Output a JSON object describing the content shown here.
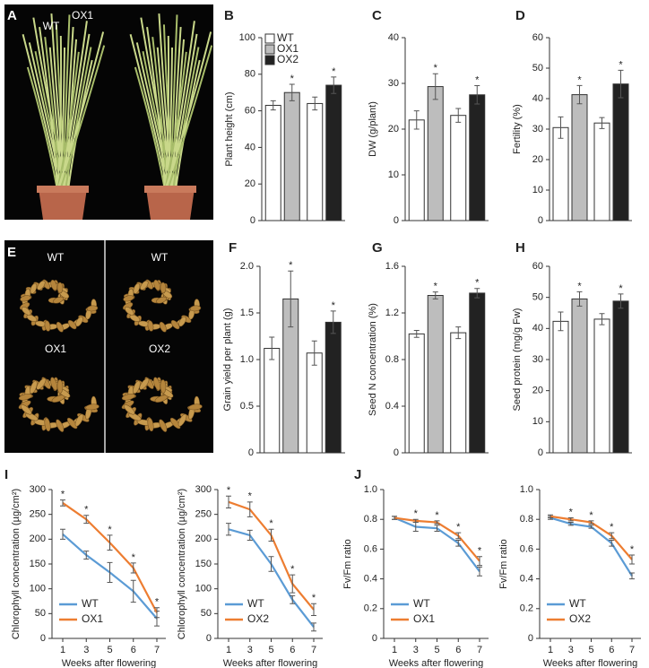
{
  "photos": [
    {
      "letter": "A",
      "labels": [
        "WT",
        "OX1"
      ]
    },
    {
      "letter": "E",
      "labels": [
        "WT",
        "WT",
        "OX1",
        "OX2"
      ]
    }
  ],
  "chart_data": [
    {
      "type": "bar",
      "panel": "B",
      "y_label": "Plant height (cm)",
      "categories": [
        null,
        null
      ],
      "ylim": [
        0,
        100
      ],
      "yticks": [
        0,
        20,
        40,
        60,
        80,
        100
      ],
      "legend": "upper left",
      "series": [
        {
          "name": "WT",
          "color": "#ffffff",
          "values": [
            63,
            64
          ],
          "errors": [
            2.5,
            3.5
          ]
        },
        {
          "name": "OX1",
          "color": "#bdbdbd",
          "values": [
            70,
            null
          ],
          "errors": [
            4.5,
            null
          ],
          "annotations": [
            "*",
            null
          ]
        },
        {
          "name": "OX2",
          "color": "#222222",
          "values": [
            null,
            74
          ],
          "errors": [
            null,
            4.5
          ],
          "annotations": [
            null,
            "*"
          ]
        }
      ]
    },
    {
      "type": "bar",
      "panel": "C",
      "y_label": "DW (g/plant)",
      "categories": [
        null,
        null
      ],
      "ylim": [
        0,
        40
      ],
      "yticks": [
        0,
        10,
        20,
        30,
        40
      ],
      "series": [
        {
          "name": "WT",
          "color": "#ffffff",
          "values": [
            22,
            23
          ],
          "errors": [
            2,
            1.5
          ]
        },
        {
          "name": "OX1",
          "color": "#bdbdbd",
          "values": [
            29.3,
            null
          ],
          "errors": [
            2.8,
            null
          ],
          "annotations": [
            "*",
            null
          ]
        },
        {
          "name": "OX2",
          "color": "#222222",
          "values": [
            null,
            27.5
          ],
          "errors": [
            null,
            2
          ],
          "annotations": [
            null,
            "*"
          ]
        }
      ]
    },
    {
      "type": "bar",
      "panel": "D",
      "y_label": "Fertility (%)",
      "categories": [
        null,
        null
      ],
      "ylim": [
        0,
        60
      ],
      "yticks": [
        0,
        10,
        20,
        30,
        40,
        50,
        60
      ],
      "series": [
        {
          "name": "WT",
          "color": "#ffffff",
          "values": [
            30.5,
            32
          ],
          "errors": [
            3.5,
            1.8
          ]
        },
        {
          "name": "OX1",
          "color": "#bdbdbd",
          "values": [
            41.3,
            null
          ],
          "errors": [
            3,
            null
          ],
          "annotations": [
            "*",
            null
          ]
        },
        {
          "name": "OX2",
          "color": "#222222",
          "values": [
            null,
            44.8
          ],
          "errors": [
            null,
            4.5
          ],
          "annotations": [
            null,
            "*"
          ]
        }
      ]
    },
    {
      "type": "bar",
      "panel": "F",
      "y_label": "Grain yield per plant (g)",
      "categories": [
        null,
        null
      ],
      "ylim": [
        0,
        2
      ],
      "yticks": [
        0,
        0.5,
        {
          "value": 1,
          "label": "1.0"
        },
        1.5,
        {
          "value": 2,
          "label": "2.0"
        }
      ],
      "series": [
        {
          "name": "WT",
          "color": "#ffffff",
          "values": [
            1.12,
            1.07
          ],
          "errors": [
            0.12,
            0.13
          ]
        },
        {
          "name": "OX1",
          "color": "#bdbdbd",
          "values": [
            1.65,
            null
          ],
          "errors": [
            0.3,
            null
          ],
          "annotations": [
            "*",
            null
          ]
        },
        {
          "name": "OX2",
          "color": "#222222",
          "values": [
            null,
            1.4
          ],
          "errors": [
            null,
            0.12
          ],
          "annotations": [
            null,
            "*"
          ]
        }
      ]
    },
    {
      "type": "bar",
      "panel": "G",
      "y_label": "Seed N concentration (%)",
      "categories": [
        null,
        null
      ],
      "ylim": [
        0,
        1.6
      ],
      "yticks": [
        0,
        0.4,
        0.8,
        1.2,
        1.6
      ],
      "series": [
        {
          "name": "WT",
          "color": "#ffffff",
          "values": [
            1.02,
            1.03
          ],
          "errors": [
            0.03,
            0.05
          ]
        },
        {
          "name": "OX1",
          "color": "#bdbdbd",
          "values": [
            1.35,
            null
          ],
          "errors": [
            0.03,
            null
          ],
          "annotations": [
            "*",
            null
          ]
        },
        {
          "name": "OX2",
          "color": "#222222",
          "values": [
            null,
            1.37
          ],
          "errors": [
            null,
            0.04
          ],
          "annotations": [
            null,
            "*"
          ]
        }
      ]
    },
    {
      "type": "bar",
      "panel": "H",
      "y_label": "Seed protein (mg/g Fw)",
      "categories": [
        null,
        null
      ],
      "ylim": [
        0,
        60
      ],
      "yticks": [
        0,
        10,
        20,
        30,
        40,
        50,
        60
      ],
      "series": [
        {
          "name": "WT",
          "color": "#ffffff",
          "values": [
            42.3,
            43
          ],
          "errors": [
            3,
            1.8
          ]
        },
        {
          "name": "OX1",
          "color": "#bdbdbd",
          "values": [
            49.5,
            null
          ],
          "errors": [
            2.3,
            null
          ],
          "annotations": [
            "*",
            null
          ]
        },
        {
          "name": "OX2",
          "color": "#222222",
          "values": [
            null,
            48.8
          ],
          "errors": [
            null,
            2.3
          ],
          "annotations": [
            null,
            "*"
          ]
        }
      ]
    },
    {
      "type": "line",
      "panel": "I",
      "y_label": "Chlorophyll concentration (µg/cm²)",
      "x_label": "Weeks after flowering",
      "categories": [
        "1",
        "3",
        "5",
        "6",
        "7"
      ],
      "ylim": [
        0,
        300
      ],
      "yticks": [
        0,
        50,
        100,
        150,
        200,
        250,
        300
      ],
      "legend": "lower left",
      "series": [
        {
          "name": "WT",
          "color": "#5b9bd5",
          "values": [
            210,
            168,
            133,
            95,
            40
          ],
          "errors": [
            10,
            8,
            20,
            22,
            15
          ]
        },
        {
          "name": "OX1",
          "color": "#ed7d31",
          "values": [
            273,
            240,
            193,
            142,
            52
          ],
          "errors": [
            6,
            8,
            15,
            10,
            10
          ],
          "annotations": [
            "*",
            "*",
            "*",
            "*",
            "*"
          ]
        }
      ]
    },
    {
      "type": "line",
      "y_label": "Chlorophyll concentration (µg/cm²)",
      "x_label": "Weeks after flowering",
      "categories": [
        "1",
        "3",
        "5",
        "6",
        "7"
      ],
      "ylim": [
        0,
        300
      ],
      "yticks": [
        0,
        50,
        100,
        150,
        200,
        250,
        300
      ],
      "legend": "lower left",
      "series": [
        {
          "name": "WT",
          "color": "#5b9bd5",
          "values": [
            220,
            208,
            150,
            78,
            23
          ],
          "errors": [
            12,
            10,
            15,
            8,
            8
          ]
        },
        {
          "name": "OX2",
          "color": "#ed7d31",
          "values": [
            275,
            260,
            208,
            110,
            58
          ],
          "errors": [
            12,
            15,
            12,
            18,
            12
          ],
          "annotations": [
            "*",
            "*",
            "*",
            "*",
            "*"
          ]
        }
      ]
    },
    {
      "type": "line",
      "panel": "J",
      "y_label": "Fv/Fm ratio",
      "x_label": "Weeks after flowering",
      "categories": [
        "1",
        "3",
        "5",
        "6",
        "7"
      ],
      "ylim": [
        0,
        1
      ],
      "yticks": [
        0,
        0.2,
        0.4,
        0.6,
        0.8,
        {
          "value": 1,
          "label": "1.0"
        }
      ],
      "legend": "lower left",
      "series": [
        {
          "name": "WT",
          "color": "#5b9bd5",
          "values": [
            0.81,
            0.75,
            0.74,
            0.64,
            0.45
          ],
          "errors": [
            0.01,
            0.03,
            0.02,
            0.02,
            0.03
          ]
        },
        {
          "name": "OX1",
          "color": "#ed7d31",
          "values": [
            0.81,
            0.79,
            0.78,
            0.69,
            0.52
          ],
          "errors": [
            0.01,
            0.01,
            0.01,
            0.02,
            0.03
          ],
          "annotations": [
            null,
            "*",
            "*",
            "*",
            "*"
          ]
        }
      ]
    },
    {
      "type": "line",
      "y_label": "Fv/Fm ratio",
      "x_label": "Weeks after flowering",
      "categories": [
        "1",
        "3",
        "5",
        "6",
        "7"
      ],
      "ylim": [
        0,
        1
      ],
      "yticks": [
        0,
        0.2,
        0.4,
        0.6,
        0.8,
        {
          "value": 1,
          "label": "1.0"
        }
      ],
      "legend": "lower left",
      "series": [
        {
          "name": "WT",
          "color": "#5b9bd5",
          "values": [
            0.81,
            0.77,
            0.75,
            0.64,
            0.42
          ],
          "errors": [
            0.01,
            0.01,
            0.01,
            0.02,
            0.02
          ]
        },
        {
          "name": "OX2",
          "color": "#ed7d31",
          "values": [
            0.82,
            0.8,
            0.78,
            0.69,
            0.53
          ],
          "errors": [
            0.01,
            0.01,
            0.01,
            0.02,
            0.03
          ],
          "annotations": [
            null,
            "*",
            "*",
            "*",
            "*"
          ]
        }
      ]
    }
  ]
}
